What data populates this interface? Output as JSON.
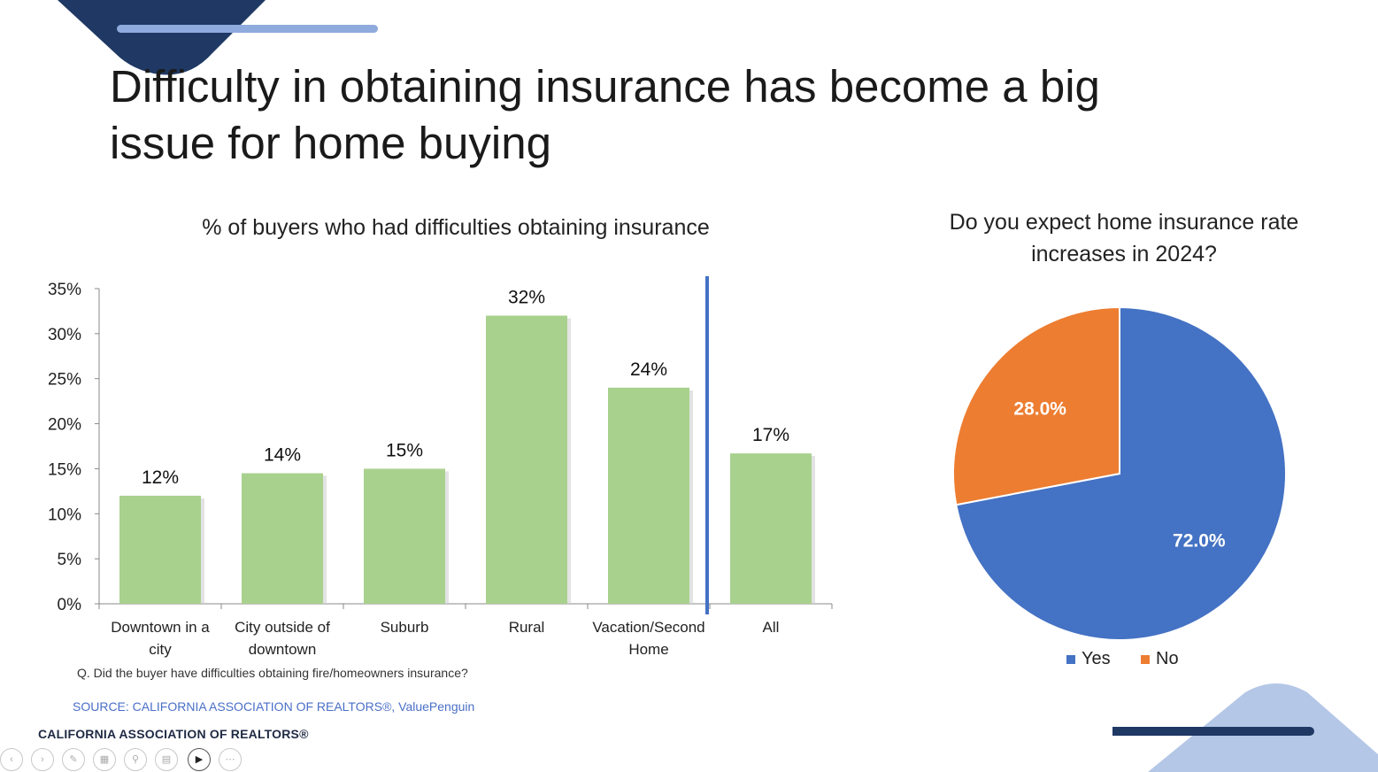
{
  "slide": {
    "title": "Difficulty in obtaining insurance has become a big issue for home buying",
    "question": "Q. Did the buyer have difficulties obtaining fire/homeowners insurance?",
    "source": "SOURCE: CALIFORNIA ASSOCIATION OF REALTORS®, ValuePenguin",
    "brand": "CALIFORNIA ASSOCIATION OF REALTORS®"
  },
  "colors": {
    "bar_fill": "#a9d18e",
    "divider": "#4472c4",
    "pie_yes": "#4472c4",
    "pie_no": "#ed7d31",
    "deco_dark": "#1f3864",
    "deco_light": "#8faadc"
  },
  "chart_data": [
    {
      "type": "bar",
      "title": "% of buyers who had difficulties obtaining insurance",
      "categories": [
        "Downtown in a city",
        "City outside of downtown",
        "Suburb",
        "Rural",
        "Vacation/Second Home",
        "All"
      ],
      "category_label_lines": [
        [
          "Downtown in a",
          "city"
        ],
        [
          "City outside of",
          "downtown"
        ],
        [
          "Suburb"
        ],
        [
          "Rural"
        ],
        [
          "Vacation/Second",
          "Home"
        ],
        [
          "All"
        ]
      ],
      "values": [
        12,
        14.5,
        15,
        32,
        24,
        16.7
      ],
      "data_labels": [
        "12%",
        "14%",
        "15%",
        "32%",
        "24%",
        "17%"
      ],
      "ylim": [
        0,
        35
      ],
      "yticks": [
        0,
        5,
        10,
        15,
        20,
        25,
        30,
        35
      ],
      "ytick_labels": [
        "0%",
        "5%",
        "10%",
        "15%",
        "20%",
        "25%",
        "30%",
        "35%"
      ],
      "grid": false,
      "xlabel": "",
      "ylabel": ""
    },
    {
      "type": "pie",
      "title": "Do you expect home insurance rate increases in 2024?",
      "labels": [
        "Yes",
        "No"
      ],
      "values": [
        72.0,
        28.0
      ],
      "data_labels": [
        "72.0%",
        "28.0%"
      ],
      "legend": "bottom"
    }
  ],
  "presenter_controls": [
    "previous-icon",
    "next-icon",
    "pen-icon",
    "slides-icon",
    "zoom-icon",
    "subtitles-icon",
    "camera-icon",
    "more-icon"
  ]
}
